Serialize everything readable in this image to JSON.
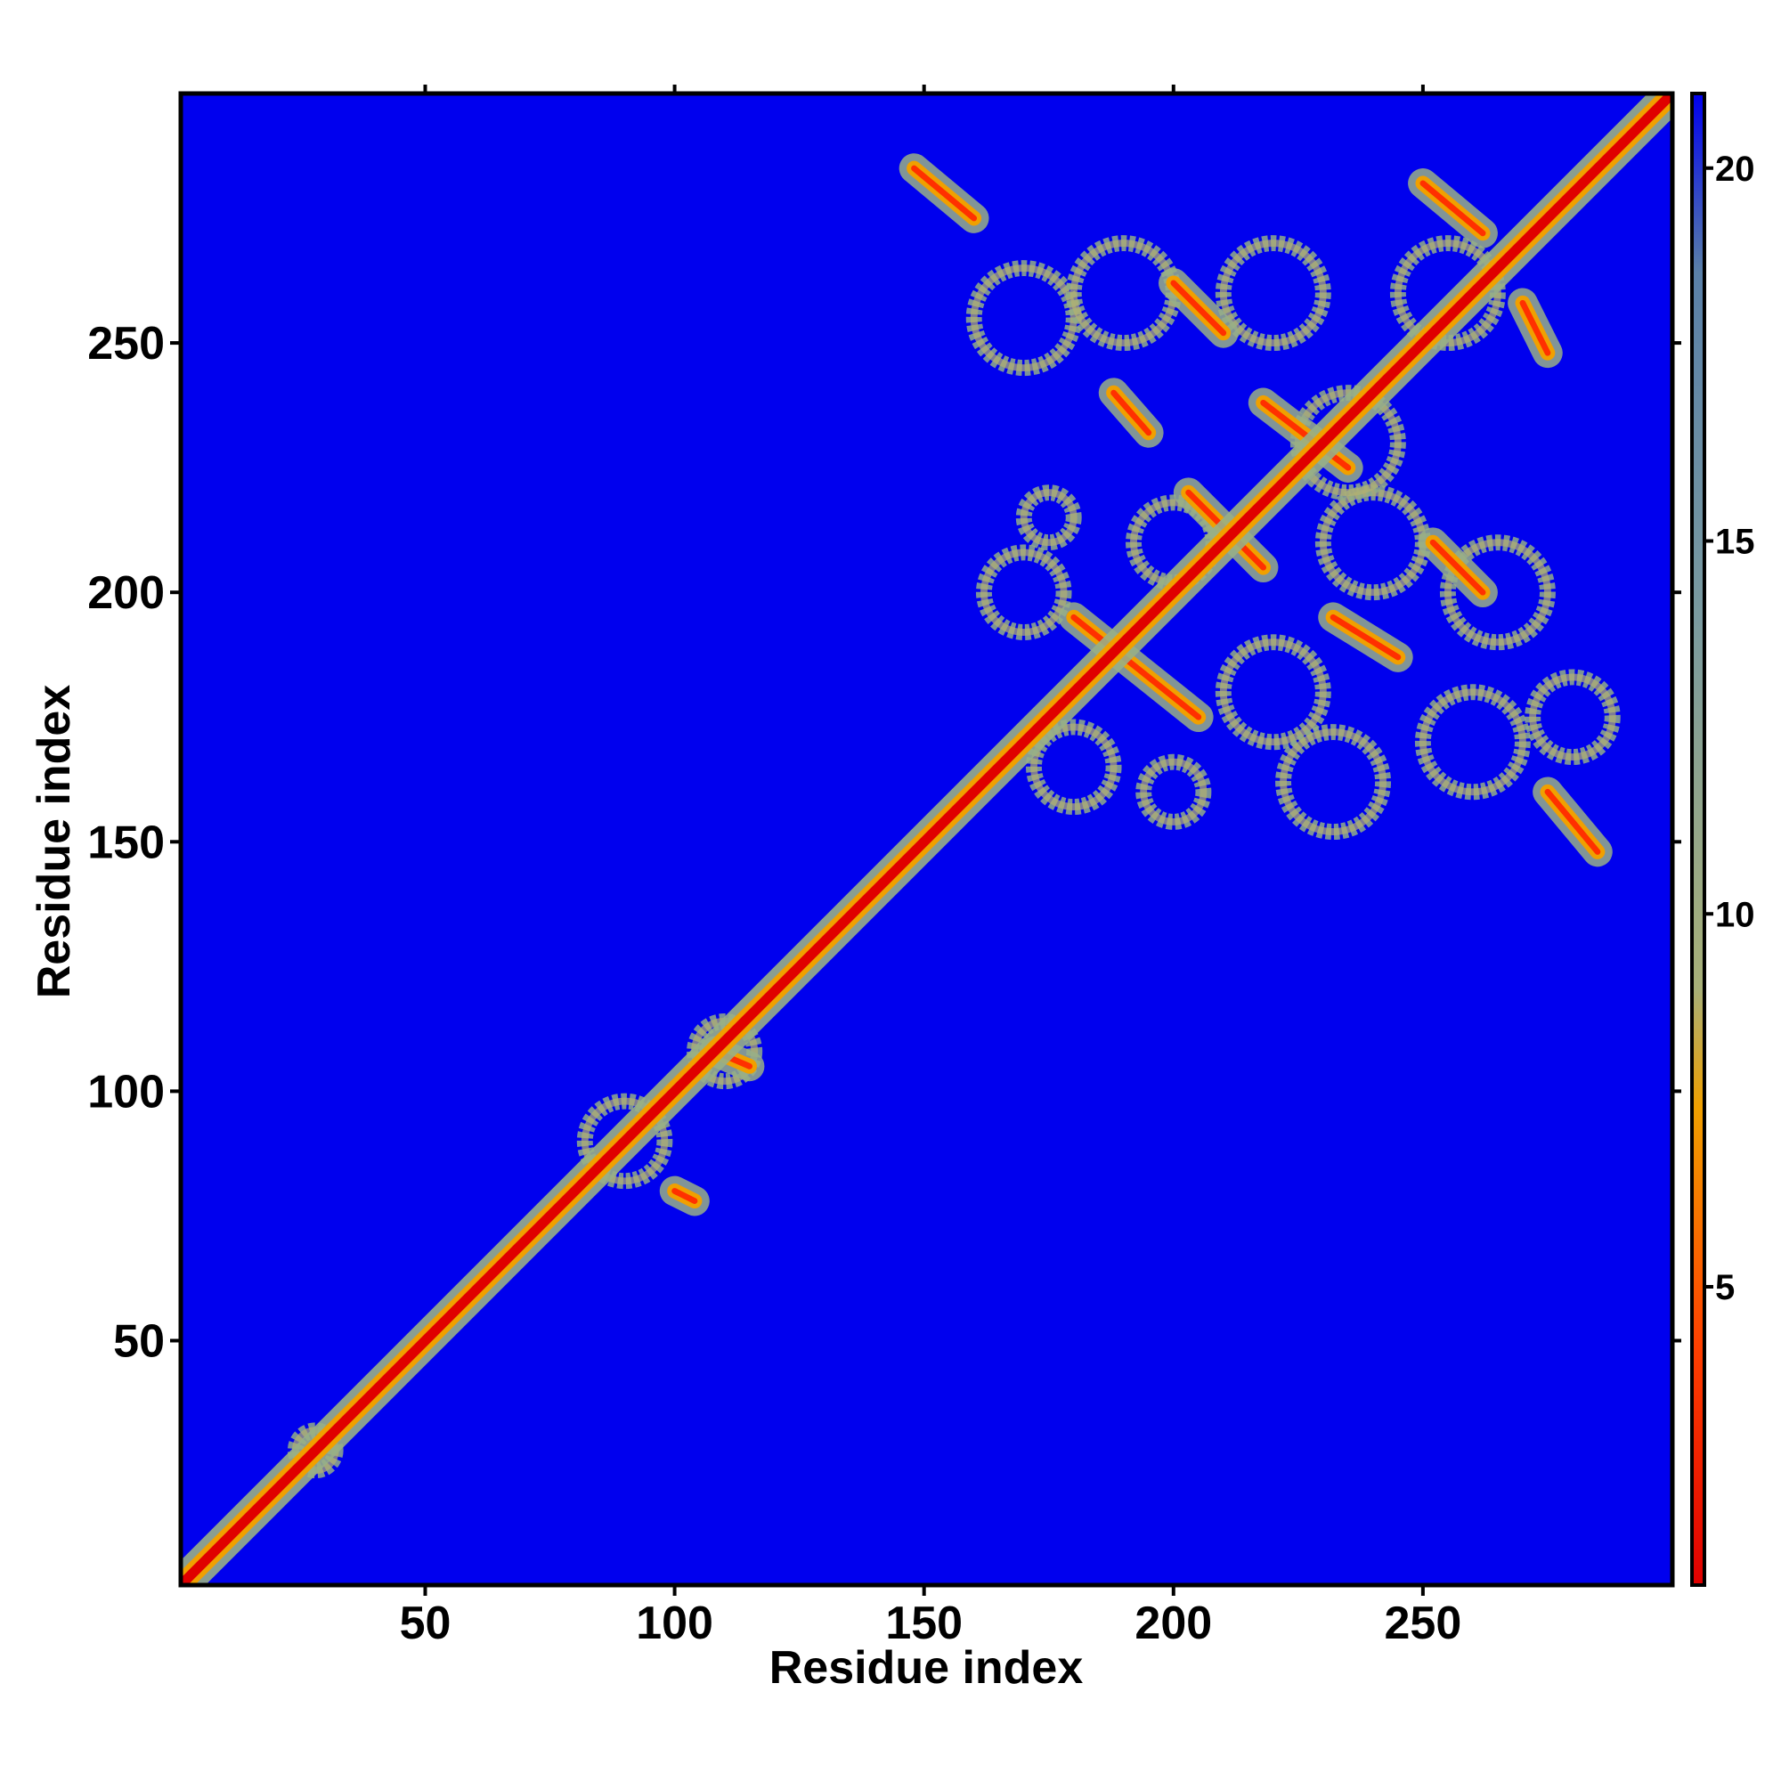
{
  "chart_data": {
    "type": "heatmap",
    "title": "",
    "xlabel": "Residue index",
    "ylabel": "Residue index",
    "xlim": [
      1,
      300
    ],
    "ylim": [
      1,
      300
    ],
    "x_ticks": [
      50,
      100,
      150,
      200,
      250
    ],
    "y_ticks": [
      50,
      100,
      150,
      200,
      250
    ],
    "x_tick_labels": [
      "50",
      "100",
      "150",
      "200",
      "250"
    ],
    "y_tick_labels": [
      "50",
      "100",
      "150",
      "200",
      "250"
    ],
    "colorbar": {
      "range": [
        1,
        21
      ],
      "ticks": [
        5,
        10,
        15,
        20
      ],
      "tick_labels": [
        "5",
        "10",
        "15",
        "20"
      ],
      "colors": [
        "#e00000",
        "#ff6000",
        "#f0a000",
        "#98b088",
        "#5a80a8",
        "#0000ee"
      ]
    },
    "background_color": "#0000ee",
    "description_values": {
      "diagonal_distance": 1,
      "near_contact_distance": 5,
      "far_distance": 21
    },
    "features": {
      "diagonal": {
        "from": 1,
        "to": 300
      },
      "off_diagonal_contacts": [
        {
          "x": [
            148,
            160
          ],
          "y": [
            285,
            275
          ]
        },
        {
          "x": [
            180,
            205
          ],
          "y": [
            195,
            175
          ]
        },
        {
          "x": [
            188,
            195
          ],
          "y": [
            240,
            232
          ]
        },
        {
          "x": [
            200,
            210
          ],
          "y": [
            262,
            252
          ]
        },
        {
          "x": [
            203,
            218
          ],
          "y": [
            220,
            205
          ]
        },
        {
          "x": [
            218,
            235
          ],
          "y": [
            238,
            225
          ]
        },
        {
          "x": [
            232,
            245
          ],
          "y": [
            195,
            187
          ]
        },
        {
          "x": [
            250,
            262
          ],
          "y": [
            282,
            272
          ]
        },
        {
          "x": [
            252,
            262
          ],
          "y": [
            210,
            200
          ]
        },
        {
          "x": [
            270,
            275
          ],
          "y": [
            258,
            248
          ]
        },
        {
          "x": [
            275,
            285
          ],
          "y": [
            160,
            148
          ]
        },
        {
          "x": [
            108,
            115
          ],
          "y": [
            108,
            105
          ]
        },
        {
          "x": [
            100,
            104
          ],
          "y": [
            80,
            78
          ]
        }
      ],
      "contact_halo_regions": [
        {
          "center": [
            170,
            255
          ],
          "radius": 10
        },
        {
          "center": [
            190,
            260
          ],
          "radius": 10
        },
        {
          "center": [
            220,
            260
          ],
          "radius": 10
        },
        {
          "center": [
            255,
            260
          ],
          "radius": 10
        },
        {
          "center": [
            170,
            200
          ],
          "radius": 8
        },
        {
          "center": [
            200,
            210
          ],
          "radius": 8
        },
        {
          "center": [
            240,
            210
          ],
          "radius": 10
        },
        {
          "center": [
            265,
            200
          ],
          "radius": 10
        },
        {
          "center": [
            220,
            180
          ],
          "radius": 10
        },
        {
          "center": [
            260,
            170
          ],
          "radius": 10
        },
        {
          "center": [
            180,
            165
          ],
          "radius": 8
        },
        {
          "center": [
            200,
            160
          ],
          "radius": 6
        },
        {
          "center": [
            232,
            162
          ],
          "radius": 10
        },
        {
          "center": [
            280,
            175
          ],
          "radius": 8
        },
        {
          "center": [
            235,
            230
          ],
          "radius": 10
        },
        {
          "center": [
            175,
            215
          ],
          "radius": 5
        },
        {
          "center": [
            90,
            90
          ],
          "radius": 8
        },
        {
          "center": [
            110,
            108
          ],
          "radius": 6
        },
        {
          "center": [
            28,
            28
          ],
          "radius": 4
        }
      ]
    }
  }
}
